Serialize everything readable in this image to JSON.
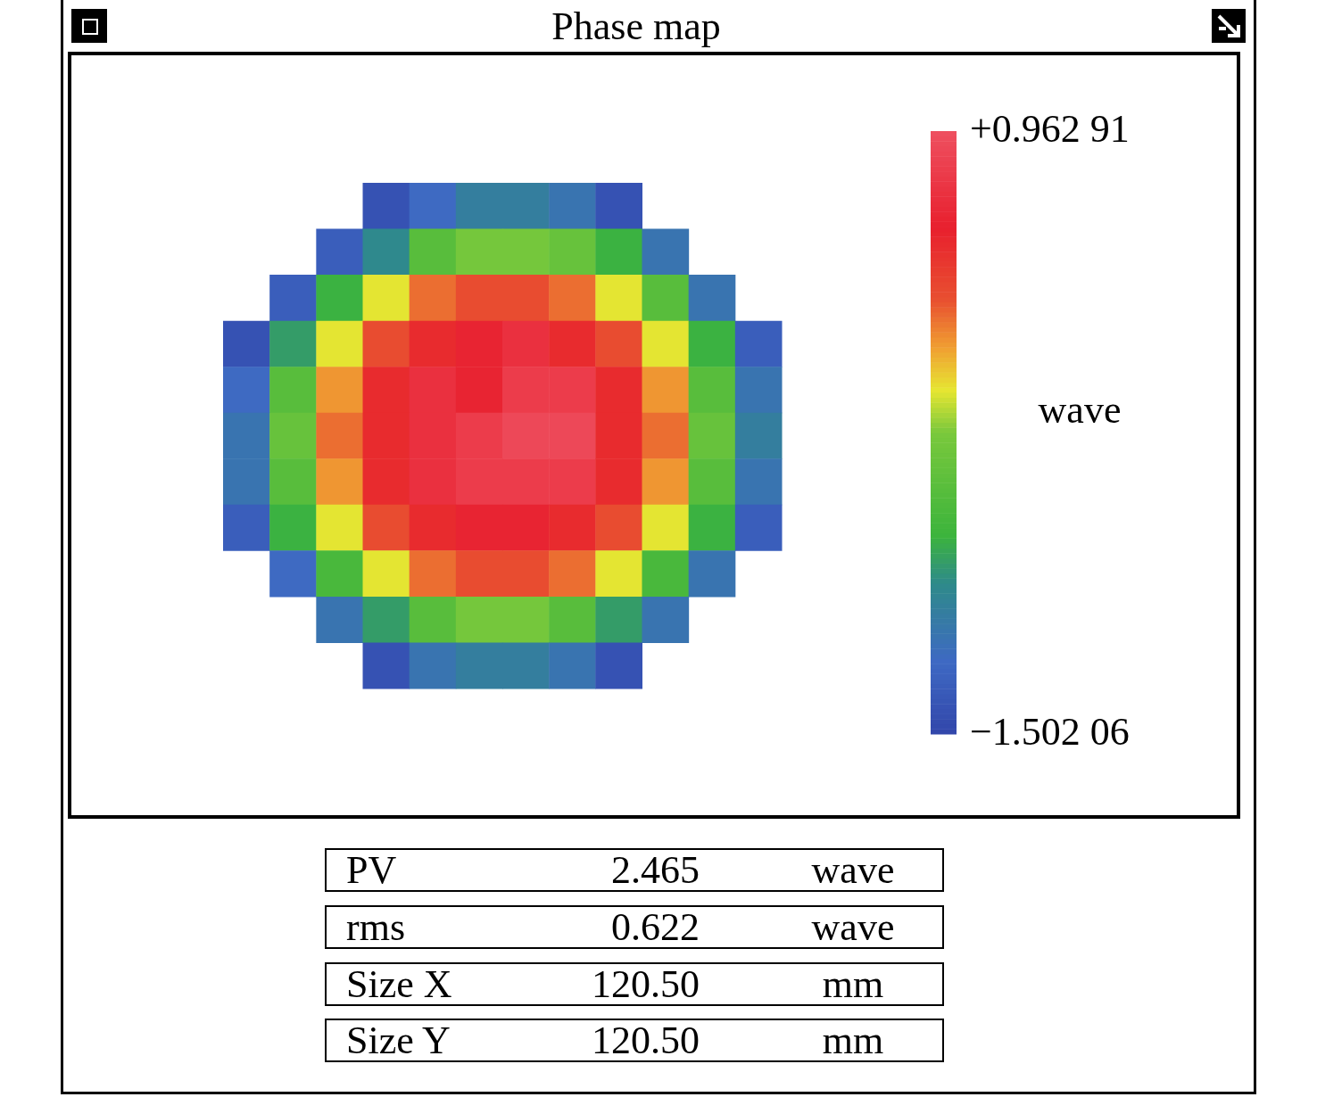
{
  "chart_data": {
    "type": "heatmap",
    "title": "Phase map",
    "clabel": "wave",
    "categories": [
      null,
      null,
      null,
      null,
      null,
      null,
      null,
      null,
      null,
      null,
      null,
      null
    ],
    "y_categories": [
      null,
      null,
      null,
      null,
      null,
      null,
      null,
      null,
      null,
      null,
      null
    ],
    "cells": [
      [
        null,
        null,
        null,
        -1.4,
        -1.2,
        -1.0,
        -1.0,
        -1.1,
        -1.4,
        null,
        null,
        null
      ],
      [
        null,
        null,
        -1.3,
        -0.9,
        -0.5,
        -0.3,
        -0.3,
        -0.4,
        -0.7,
        -1.1,
        null,
        null
      ],
      [
        null,
        -1.3,
        -0.7,
        -0.1,
        0.2,
        0.3,
        0.3,
        0.2,
        -0.1,
        -0.5,
        -1.1,
        null
      ],
      [
        -1.4,
        -0.8,
        -0.1,
        0.3,
        0.5,
        0.6,
        0.7,
        0.5,
        0.3,
        -0.1,
        -0.7,
        -1.3
      ],
      [
        -1.2,
        -0.5,
        0.1,
        0.5,
        0.7,
        0.6,
        0.8,
        0.8,
        0.5,
        0.1,
        -0.5,
        -1.1
      ],
      [
        -1.1,
        -0.4,
        0.2,
        0.5,
        0.7,
        0.8,
        0.9,
        0.9,
        0.5,
        0.2,
        -0.4,
        -1.0
      ],
      [
        -1.1,
        -0.5,
        0.1,
        0.5,
        0.7,
        0.8,
        0.8,
        0.8,
        0.5,
        0.1,
        -0.5,
        -1.1
      ],
      [
        -1.3,
        -0.7,
        -0.1,
        0.3,
        0.5,
        0.6,
        0.6,
        0.5,
        0.3,
        -0.1,
        -0.7,
        -1.3
      ],
      [
        null,
        -1.2,
        -0.6,
        -0.1,
        0.2,
        0.3,
        0.3,
        0.2,
        -0.1,
        -0.6,
        -1.1,
        null
      ],
      [
        null,
        null,
        -1.1,
        -0.8,
        -0.5,
        -0.3,
        -0.3,
        -0.5,
        -0.8,
        -1.1,
        null,
        null
      ],
      [
        null,
        null,
        null,
        -1.4,
        -1.1,
        -1.0,
        -1.0,
        -1.1,
        -1.4,
        null,
        null,
        null
      ]
    ],
    "clim": [
      -1.50206,
      0.96291
    ],
    "cticks": [
      {
        "value": 0.96291,
        "label": "+0.962 91"
      },
      {
        "value": -1.50206,
        "label": "−1.502 06"
      }
    ],
    "tick_labels": false,
    "annotations": [
      "PV",
      "2.465",
      "wave",
      "rms",
      "0.622",
      "wave",
      "Size X",
      "120.50",
      "mm",
      "Size Y",
      "120.50",
      "mm"
    ]
  }
}
